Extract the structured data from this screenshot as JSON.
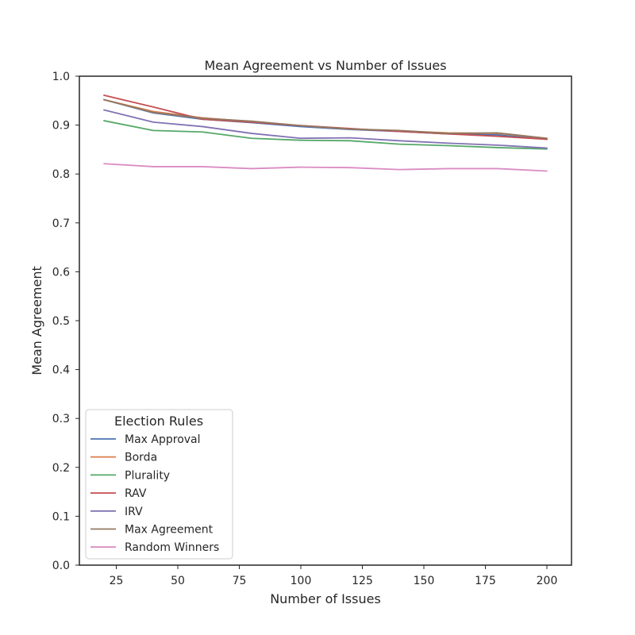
{
  "chart_data": {
    "type": "line",
    "title": "Mean Agreement vs Number of Issues",
    "xlabel": "Number of Issues",
    "ylabel": "Mean Agreement",
    "xlim": [
      10,
      210
    ],
    "ylim": [
      0.0,
      1.0
    ],
    "xticks": [
      25,
      50,
      75,
      100,
      125,
      150,
      175,
      200
    ],
    "yticks": [
      0.0,
      0.1,
      0.2,
      0.3,
      0.4,
      0.5,
      0.6,
      0.7,
      0.8,
      0.9,
      1.0
    ],
    "x": [
      20,
      40,
      60,
      80,
      100,
      120,
      140,
      160,
      180,
      200
    ],
    "grid": false,
    "legend": {
      "title": "Election Rules",
      "position": "lower left"
    },
    "series": [
      {
        "name": "Max Approval",
        "color": "#4c72b0",
        "values": [
          0.952,
          0.925,
          0.912,
          0.905,
          0.897,
          0.891,
          0.887,
          0.882,
          0.88,
          0.871
        ]
      },
      {
        "name": "Borda",
        "color": "#dd8452",
        "values": [
          0.952,
          0.928,
          0.915,
          0.907,
          0.899,
          0.892,
          0.888,
          0.884,
          0.883,
          0.873
        ]
      },
      {
        "name": "Plurality",
        "color": "#55a868",
        "values": [
          0.909,
          0.889,
          0.886,
          0.873,
          0.869,
          0.868,
          0.861,
          0.858,
          0.854,
          0.851
        ]
      },
      {
        "name": "RAV",
        "color": "#c44e52",
        "values": [
          0.961,
          0.937,
          0.912,
          0.906,
          0.899,
          0.893,
          0.887,
          0.882,
          0.877,
          0.871
        ]
      },
      {
        "name": "IRV",
        "color": "#8172b3",
        "values": [
          0.931,
          0.906,
          0.897,
          0.883,
          0.873,
          0.874,
          0.868,
          0.863,
          0.859,
          0.853
        ]
      },
      {
        "name": "Max Agreement",
        "color": "#937860",
        "values": [
          0.952,
          0.926,
          0.914,
          0.908,
          0.899,
          0.892,
          0.889,
          0.883,
          0.884,
          0.873
        ]
      },
      {
        "name": "Random Winners",
        "color": "#da8bc3",
        "values": [
          0.821,
          0.815,
          0.815,
          0.811,
          0.814,
          0.813,
          0.809,
          0.811,
          0.811,
          0.806
        ]
      }
    ]
  }
}
